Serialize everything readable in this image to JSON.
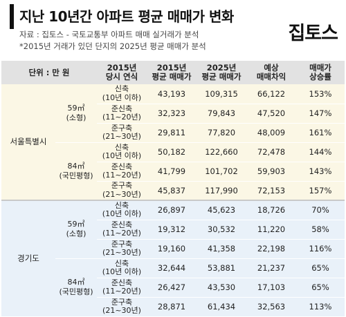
{
  "title": "지난 10년간 아파트 평균 매매가 변화",
  "source_line1": "자료 : 집토스 - 국토교통부 아파트 매매 실거래가 분석",
  "source_line2": "*2015년 거래가 있던 단지의 2025년 평균 매매가 분석",
  "logo": "집토스",
  "headers": {
    "unit": "단위 : 만 원",
    "age_l1": "2015년",
    "age_l2": "당시 연식",
    "p2015_l1": "2015년",
    "p2015_l2": "평균 매매가",
    "p2025_l1": "2025년",
    "p2025_l2": "평균 매매가",
    "diff_l1": "예상",
    "diff_l2": "매매차익",
    "rate_l1": "매매가",
    "rate_l2": "상승률"
  },
  "regions": [
    {
      "name": "서울특별시",
      "sizes": [
        {
          "size_l1": "59㎡",
          "size_l2": "(소형)",
          "rows": [
            {
              "age_l1": "신축",
              "age_l2": "(10년 이하)",
              "p2015": "43,193",
              "p2025": "109,315",
              "diff": "66,122",
              "rate": "153%"
            },
            {
              "age_l1": "준신축",
              "age_l2": "(11~20년)",
              "p2015": "32,323",
              "p2025": "79,843",
              "diff": "47,520",
              "rate": "147%"
            },
            {
              "age_l1": "준구축",
              "age_l2": "(21~30년)",
              "p2015": "29,811",
              "p2025": "77,820",
              "diff": "48,009",
              "rate": "161%"
            }
          ]
        },
        {
          "size_l1": "84㎡",
          "size_l2": "(국민평형)",
          "rows": [
            {
              "age_l1": "신축",
              "age_l2": "(10년 이하)",
              "p2015": "50,182",
              "p2025": "122,660",
              "diff": "72,478",
              "rate": "144%"
            },
            {
              "age_l1": "준신축",
              "age_l2": "(11~20년)",
              "p2015": "41,799",
              "p2025": "101,702",
              "diff": "59,903",
              "rate": "143%"
            },
            {
              "age_l1": "준구축",
              "age_l2": "(21~30년)",
              "p2015": "45,837",
              "p2025": "117,990",
              "diff": "72,153",
              "rate": "157%"
            }
          ]
        }
      ]
    },
    {
      "name": "경기도",
      "sizes": [
        {
          "size_l1": "59㎡",
          "size_l2": "(소형)",
          "rows": [
            {
              "age_l1": "신축",
              "age_l2": "(10년 이하)",
              "p2015": "26,897",
              "p2025": "45,623",
              "diff": "18,726",
              "rate": "70%"
            },
            {
              "age_l1": "준신축",
              "age_l2": "(11~20년)",
              "p2015": "19,312",
              "p2025": "30,532",
              "diff": "11,220",
              "rate": "58%"
            },
            {
              "age_l1": "준구축",
              "age_l2": "(21~30년)",
              "p2015": "19,160",
              "p2025": "41,358",
              "diff": "22,198",
              "rate": "116%"
            }
          ]
        },
        {
          "size_l1": "84㎡",
          "size_l2": "(국민평형)",
          "rows": [
            {
              "age_l1": "신축",
              "age_l2": "(10년 이하)",
              "p2015": "32,644",
              "p2025": "53,881",
              "diff": "21,237",
              "rate": "65%"
            },
            {
              "age_l1": "준신축",
              "age_l2": "(11~20년)",
              "p2015": "26,427",
              "p2025": "43,530",
              "diff": "17,103",
              "rate": "65%"
            },
            {
              "age_l1": "준구축",
              "age_l2": "(21~30년)",
              "p2015": "28,871",
              "p2025": "61,434",
              "diff": "32,563",
              "rate": "113%"
            }
          ]
        }
      ]
    }
  ]
}
